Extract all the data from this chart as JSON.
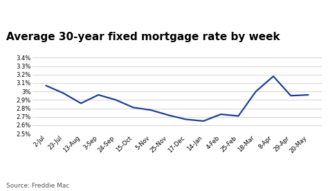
{
  "title": "Average 30-year fixed mortgage rate by week",
  "source": "Source: Freddie Mac",
  "x_labels": [
    "2-Jul",
    "23-Jul",
    "13-Aug",
    "3-Sep",
    "24-Sep",
    "15-Oct",
    "5-Nov",
    "25-Nov",
    "17-Dec",
    "14-Jan",
    "4-Feb",
    "25-Feb",
    "18-Mar",
    "8-Apr",
    "29-Apr",
    "20-May"
  ],
  "y_values": [
    3.07,
    2.98,
    2.86,
    2.96,
    2.9,
    2.81,
    2.78,
    2.72,
    2.67,
    2.65,
    2.73,
    2.71,
    3.0,
    3.18,
    2.95,
    2.96
  ],
  "ylim": [
    2.5,
    3.45
  ],
  "yticks": [
    2.5,
    2.6,
    2.7,
    2.8,
    2.9,
    3.0,
    3.1,
    3.2,
    3.3,
    3.4
  ],
  "line_color": "#1c3f94",
  "line_width": 1.6,
  "bg_color": "#ffffff",
  "grid_color": "#cccccc",
  "title_fontsize": 11,
  "tick_fontsize": 6.0,
  "source_fontsize": 6.5
}
